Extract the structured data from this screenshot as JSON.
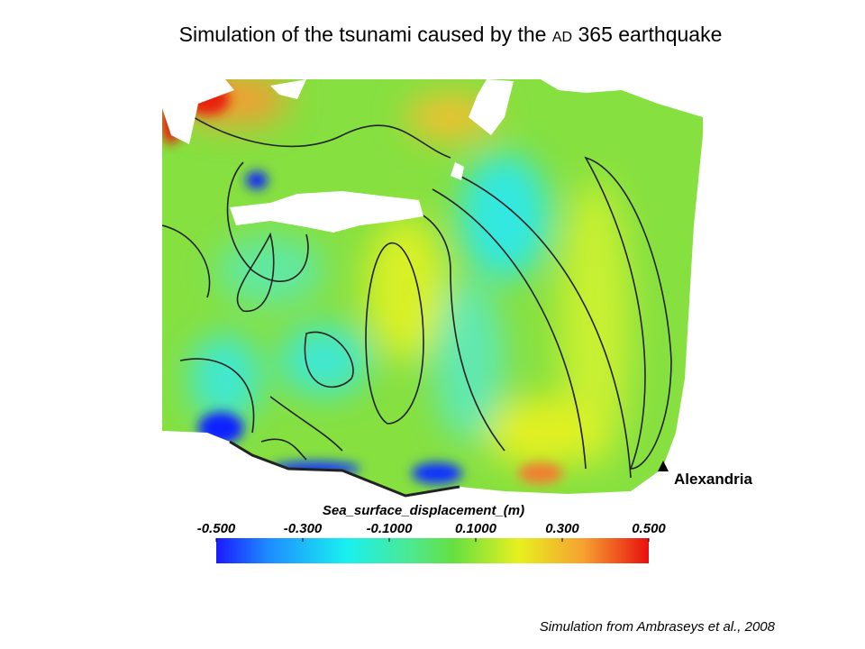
{
  "title": {
    "before": "Simulation of the tsunami caused by the",
    "small_caps": "AD",
    "after": "365 earthquake"
  },
  "colorbar": {
    "label": "Sea_surface_displacement_(m)",
    "lim": [
      -0.5,
      0.5
    ],
    "ticks": [
      {
        "value": -0.5,
        "label": "-0.500"
      },
      {
        "value": -0.3,
        "label": "-0.300"
      },
      {
        "value": -0.1,
        "label": "-0.1000"
      },
      {
        "value": 0.1,
        "label": "0.1000"
      },
      {
        "value": 0.3,
        "label": "0.300"
      },
      {
        "value": 0.5,
        "label": "0.500"
      }
    ]
  },
  "place_label": "Alexandria",
  "credit": "Simulation from Ambraseys et al., 2008"
}
